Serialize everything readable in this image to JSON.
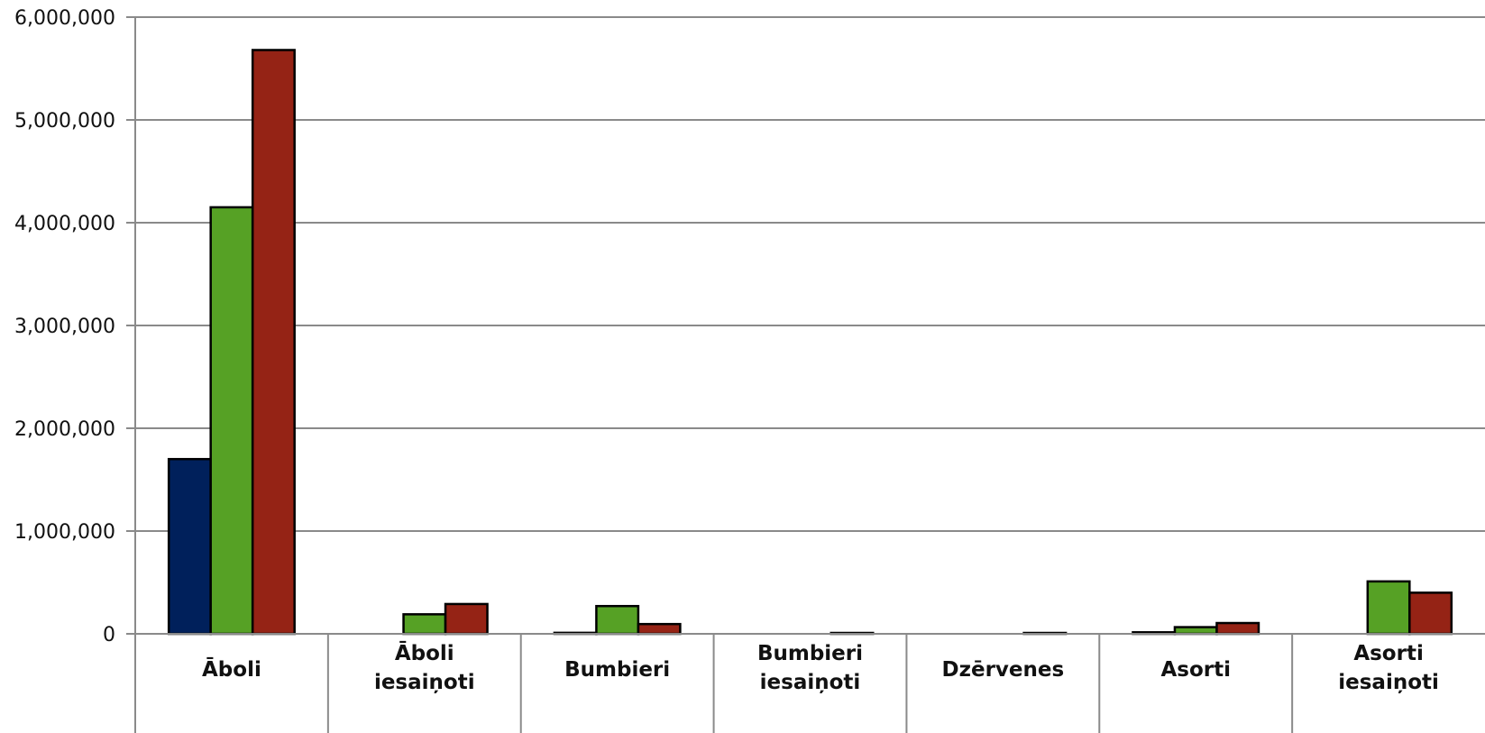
{
  "chart_data": {
    "type": "bar",
    "categories": [
      [
        "Āboli"
      ],
      [
        "Āboli",
        "iesaiņoti"
      ],
      [
        "Bumbieri"
      ],
      [
        "Bumbieri",
        "iesaiņoti"
      ],
      [
        "Dzērvenes"
      ],
      [
        "Asorti"
      ],
      [
        "Asorti",
        "iesaiņoti"
      ]
    ],
    "series": [
      {
        "color": "#00205B",
        "values": [
          1700000,
          0,
          10000,
          0,
          0,
          15000,
          0
        ]
      },
      {
        "color": "#56A125",
        "values": [
          4150000,
          190000,
          270000,
          0,
          0,
          65000,
          510000
        ]
      },
      {
        "color": "#952315",
        "values": [
          5680000,
          290000,
          95000,
          5000,
          5000,
          105000,
          400000
        ]
      }
    ],
    "ylim": [
      0,
      6000000
    ],
    "yticks": [
      0,
      1000000,
      2000000,
      3000000,
      4000000,
      5000000,
      6000000
    ],
    "ytick_labels": [
      "0",
      "1,000,000",
      "2,000,000",
      "3,000,000",
      "4,000,000",
      "5,000,000",
      "6,000,000"
    ],
    "grid": true,
    "legend": "none"
  }
}
